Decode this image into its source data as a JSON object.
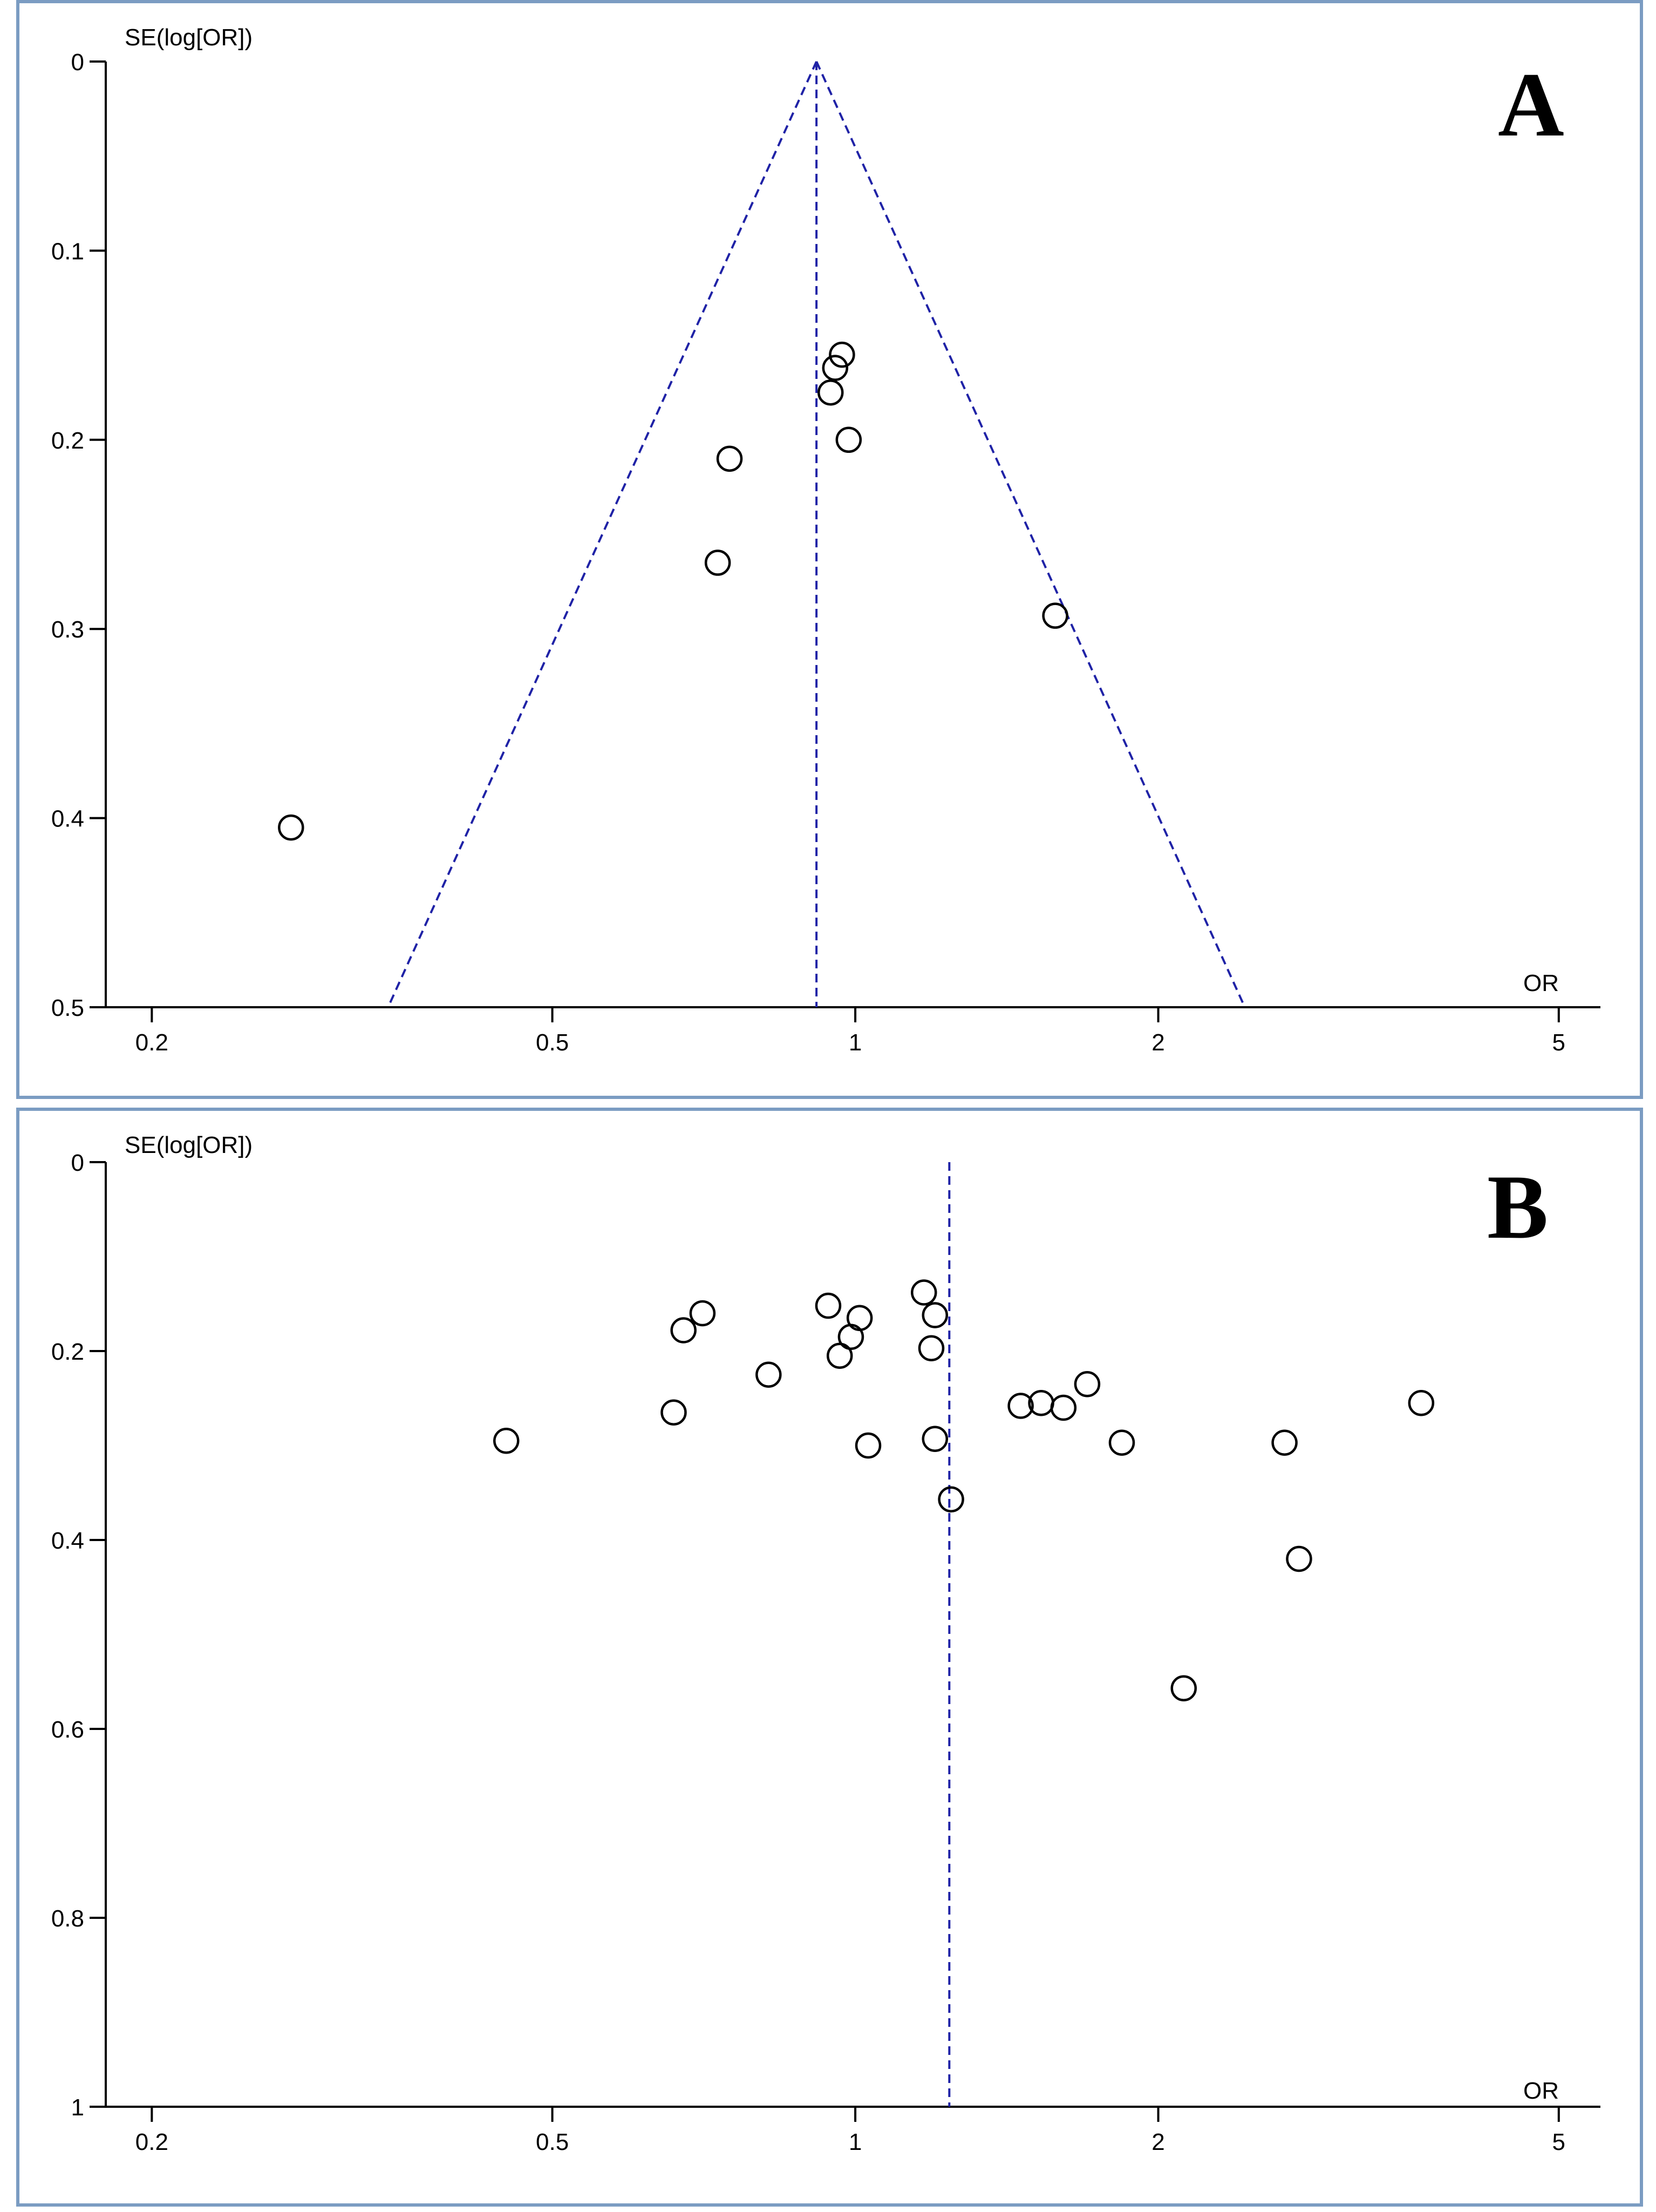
{
  "chart_data": [
    {
      "type": "scatter",
      "panel_label": "A",
      "title": "",
      "xlabel": "OR",
      "ylabel": "SE(log[OR])",
      "x_scale": "log",
      "xlim": [
        0.18,
        5.5
      ],
      "ylim": [
        0,
        0.5
      ],
      "x_ticks": [
        0.2,
        0.5,
        1,
        2,
        5
      ],
      "x_tick_labels": [
        "0.2",
        "0.5",
        "1",
        "2",
        "5"
      ],
      "y_ticks": [
        0,
        0.1,
        0.2,
        0.3,
        0.4,
        0.5
      ],
      "y_tick_labels": [
        "0",
        "0.1",
        "0.2",
        "0.3",
        "0.4",
        "0.5"
      ],
      "pooled_or": 0.915,
      "funnel_limits": true,
      "line_color": "#1f22a6",
      "points": [
        {
          "or": 0.97,
          "se": 0.155
        },
        {
          "or": 0.955,
          "se": 0.162
        },
        {
          "or": 0.945,
          "se": 0.175
        },
        {
          "or": 0.985,
          "se": 0.2
        },
        {
          "or": 0.75,
          "se": 0.21
        },
        {
          "or": 0.73,
          "se": 0.265
        },
        {
          "or": 1.58,
          "se": 0.293
        },
        {
          "or": 0.275,
          "se": 0.405
        }
      ]
    },
    {
      "type": "scatter",
      "panel_label": "B",
      "title": "",
      "xlabel": "OR",
      "ylabel": "SE(log[OR])",
      "x_scale": "log",
      "xlim": [
        0.18,
        5.5
      ],
      "ylim": [
        0,
        1
      ],
      "x_ticks": [
        0.2,
        0.5,
        1,
        2,
        5
      ],
      "x_tick_labels": [
        "0.2",
        "0.5",
        "1",
        "2",
        "5"
      ],
      "y_ticks": [
        0,
        0.2,
        0.4,
        0.6,
        0.8,
        1
      ],
      "y_tick_labels": [
        "0",
        "0.2",
        "0.4",
        "0.6",
        "0.8",
        "1"
      ],
      "pooled_or": 1.24,
      "funnel_limits": false,
      "line_color": "#1f22a6",
      "points": [
        {
          "or": 0.45,
          "se": 0.295
        },
        {
          "or": 0.66,
          "se": 0.265
        },
        {
          "or": 0.675,
          "se": 0.178
        },
        {
          "or": 0.705,
          "se": 0.16
        },
        {
          "or": 0.82,
          "se": 0.225
        },
        {
          "or": 0.94,
          "se": 0.152
        },
        {
          "or": 0.965,
          "se": 0.205
        },
        {
          "or": 0.99,
          "se": 0.185
        },
        {
          "or": 1.01,
          "se": 0.165
        },
        {
          "or": 1.03,
          "se": 0.3
        },
        {
          "or": 1.17,
          "se": 0.138
        },
        {
          "or": 1.2,
          "se": 0.162
        },
        {
          "or": 1.19,
          "se": 0.197
        },
        {
          "or": 1.2,
          "se": 0.293
        },
        {
          "or": 1.245,
          "se": 0.357
        },
        {
          "or": 1.46,
          "se": 0.258
        },
        {
          "or": 1.53,
          "se": 0.255
        },
        {
          "or": 1.61,
          "se": 0.26
        },
        {
          "or": 1.7,
          "se": 0.235
        },
        {
          "or": 1.84,
          "se": 0.297
        },
        {
          "or": 2.12,
          "se": 0.557
        },
        {
          "or": 2.67,
          "se": 0.297
        },
        {
          "or": 2.76,
          "se": 0.42
        },
        {
          "or": 3.65,
          "se": 0.255
        }
      ]
    }
  ]
}
